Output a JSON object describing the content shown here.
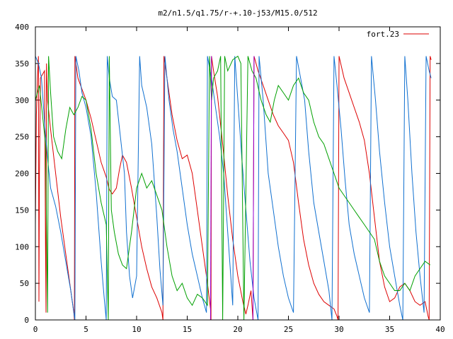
{
  "chart_data": {
    "type": "line",
    "title": "m2/n1.5/q1.75/r-+.10-j53/M15.0/512",
    "xlabel": "",
    "ylabel": "",
    "xlim": [
      0,
      40
    ],
    "ylim": [
      0,
      400
    ],
    "x_ticks": [
      "0",
      "5",
      "10",
      "15",
      "20",
      "25",
      "30",
      "35",
      "40"
    ],
    "y_ticks": [
      "0",
      "50",
      "100",
      "150",
      "200",
      "250",
      "300",
      "350",
      "400"
    ],
    "grid": false,
    "legend_position": "top-right",
    "colors": {
      "red": "#dd0000",
      "blue": "#1070d0",
      "green": "#00a000",
      "purple": "#9400d3"
    },
    "series": [
      {
        "name": "fort.23",
        "color": "#dd0000",
        "points": [
          [
            0.0,
            130
          ],
          [
            0.1,
            280
          ],
          [
            0.2,
            330
          ],
          [
            0.3,
            360
          ],
          [
            0.35,
            25
          ],
          [
            0.4,
            200
          ],
          [
            0.5,
            330
          ],
          [
            0.9,
            340
          ],
          [
            1.0,
            100
          ],
          [
            1.05,
            10
          ],
          [
            1.1,
            350
          ],
          [
            1.2,
            300
          ],
          [
            1.5,
            260
          ],
          [
            2.0,
            200
          ],
          [
            2.5,
            140
          ],
          [
            3.0,
            90
          ],
          [
            3.5,
            40
          ],
          [
            3.8,
            10
          ],
          [
            3.85,
            0
          ],
          [
            3.9,
            360
          ],
          [
            4.2,
            330
          ],
          [
            4.6,
            315
          ],
          [
            5.0,
            300
          ],
          [
            5.5,
            275
          ],
          [
            6.0,
            245
          ],
          [
            6.5,
            215
          ],
          [
            7.0,
            195
          ],
          [
            7.3,
            178
          ],
          [
            7.6,
            172
          ],
          [
            8.0,
            180
          ],
          [
            8.3,
            205
          ],
          [
            8.6,
            225
          ],
          [
            9.0,
            215
          ],
          [
            9.5,
            180
          ],
          [
            10.0,
            140
          ],
          [
            10.5,
            100
          ],
          [
            11.0,
            70
          ],
          [
            11.5,
            45
          ],
          [
            12.0,
            30
          ],
          [
            12.5,
            10
          ],
          [
            12.6,
            0
          ],
          [
            12.7,
            360
          ],
          [
            13.0,
            330
          ],
          [
            13.5,
            280
          ],
          [
            14.0,
            245
          ],
          [
            14.5,
            220
          ],
          [
            15.0,
            225
          ],
          [
            15.5,
            200
          ],
          [
            16.0,
            150
          ],
          [
            16.5,
            100
          ],
          [
            17.0,
            50
          ],
          [
            17.3,
            15
          ],
          [
            17.35,
            0
          ],
          [
            17.4,
            360
          ],
          [
            17.6,
            340
          ],
          [
            18.0,
            305
          ],
          [
            18.5,
            240
          ],
          [
            19.0,
            170
          ],
          [
            19.5,
            110
          ],
          [
            20.0,
            60
          ],
          [
            20.5,
            25
          ],
          [
            20.8,
            8
          ],
          [
            21.0,
            20
          ],
          [
            21.3,
            40
          ],
          [
            21.5,
            0
          ],
          [
            21.6,
            360
          ],
          [
            22.0,
            340
          ],
          [
            22.5,
            320
          ],
          [
            23.0,
            300
          ],
          [
            23.5,
            280
          ],
          [
            24.0,
            265
          ],
          [
            24.5,
            255
          ],
          [
            25.0,
            245
          ],
          [
            25.5,
            215
          ],
          [
            26.0,
            160
          ],
          [
            26.5,
            110
          ],
          [
            27.0,
            75
          ],
          [
            27.5,
            50
          ],
          [
            28.0,
            35
          ],
          [
            28.5,
            25
          ],
          [
            29.0,
            20
          ],
          [
            29.5,
            15
          ],
          [
            29.8,
            5
          ],
          [
            29.9,
            0
          ],
          [
            30.0,
            360
          ],
          [
            30.5,
            330
          ],
          [
            31.0,
            310
          ],
          [
            31.5,
            290
          ],
          [
            32.0,
            270
          ],
          [
            32.5,
            245
          ],
          [
            33.0,
            200
          ],
          [
            33.5,
            140
          ],
          [
            34.0,
            80
          ],
          [
            34.5,
            45
          ],
          [
            35.0,
            25
          ],
          [
            35.5,
            30
          ],
          [
            36.0,
            45
          ],
          [
            36.5,
            50
          ],
          [
            37.0,
            40
          ],
          [
            37.5,
            25
          ],
          [
            38.0,
            20
          ],
          [
            38.5,
            25
          ],
          [
            38.8,
            5
          ],
          [
            38.9,
            0
          ],
          [
            39.0,
            360
          ],
          [
            39.1,
            355
          ]
        ]
      },
      {
        "color": "#1070d0",
        "points": [
          [
            0.0,
            360
          ],
          [
            0.3,
            350
          ],
          [
            0.6,
            330
          ],
          [
            0.9,
            270
          ],
          [
            1.2,
            220
          ],
          [
            1.5,
            180
          ],
          [
            2.0,
            155
          ],
          [
            2.5,
            120
          ],
          [
            3.0,
            80
          ],
          [
            3.5,
            40
          ],
          [
            3.8,
            10
          ],
          [
            3.9,
            0
          ],
          [
            4.0,
            360
          ],
          [
            4.3,
            340
          ],
          [
            4.6,
            310
          ],
          [
            5.0,
            290
          ],
          [
            5.5,
            250
          ],
          [
            6.0,
            175
          ],
          [
            6.5,
            80
          ],
          [
            6.8,
            30
          ],
          [
            7.0,
            0
          ],
          [
            7.1,
            360
          ],
          [
            7.3,
            330
          ],
          [
            7.6,
            305
          ],
          [
            8.0,
            300
          ],
          [
            8.4,
            250
          ],
          [
            8.8,
            200
          ],
          [
            9.0,
            120
          ],
          [
            9.3,
            60
          ],
          [
            9.6,
            30
          ],
          [
            10.0,
            60
          ],
          [
            10.3,
            360
          ],
          [
            10.5,
            320
          ],
          [
            11.0,
            290
          ],
          [
            11.5,
            240
          ],
          [
            12.0,
            140
          ],
          [
            12.3,
            70
          ],
          [
            12.6,
            20
          ],
          [
            12.8,
            360
          ],
          [
            13.2,
            300
          ],
          [
            13.6,
            260
          ],
          [
            14.0,
            230
          ],
          [
            14.5,
            180
          ],
          [
            15.0,
            130
          ],
          [
            15.5,
            90
          ],
          [
            16.0,
            60
          ],
          [
            16.5,
            30
          ],
          [
            16.9,
            10
          ],
          [
            17.0,
            360
          ],
          [
            17.4,
            330
          ],
          [
            17.8,
            290
          ],
          [
            18.2,
            250
          ],
          [
            18.6,
            200
          ],
          [
            19.0,
            120
          ],
          [
            19.3,
            60
          ],
          [
            19.5,
            20
          ],
          [
            19.7,
            360
          ],
          [
            20.0,
            300
          ],
          [
            20.4,
            220
          ],
          [
            20.8,
            150
          ],
          [
            21.2,
            80
          ],
          [
            21.6,
            30
          ],
          [
            22.0,
            0
          ],
          [
            22.1,
            360
          ],
          [
            22.5,
            300
          ],
          [
            23.0,
            200
          ],
          [
            23.5,
            150
          ],
          [
            24.0,
            100
          ],
          [
            24.5,
            60
          ],
          [
            25.0,
            30
          ],
          [
            25.5,
            10
          ],
          [
            25.8,
            360
          ],
          [
            26.2,
            330
          ],
          [
            26.6,
            300
          ],
          [
            27.0,
            230
          ],
          [
            27.5,
            160
          ],
          [
            28.0,
            120
          ],
          [
            28.5,
            80
          ],
          [
            29.0,
            40
          ],
          [
            29.3,
            0
          ],
          [
            29.5,
            360
          ],
          [
            29.8,
            320
          ],
          [
            30.2,
            260
          ],
          [
            30.6,
            190
          ],
          [
            31.0,
            130
          ],
          [
            31.5,
            90
          ],
          [
            32.0,
            60
          ],
          [
            32.5,
            30
          ],
          [
            33.0,
            10
          ],
          [
            33.2,
            360
          ],
          [
            33.6,
            300
          ],
          [
            34.0,
            230
          ],
          [
            34.5,
            160
          ],
          [
            35.0,
            100
          ],
          [
            35.5,
            60
          ],
          [
            36.0,
            20
          ],
          [
            36.3,
            0
          ],
          [
            36.5,
            360
          ],
          [
            36.8,
            300
          ],
          [
            37.2,
            200
          ],
          [
            37.6,
            120
          ],
          [
            38.0,
            60
          ],
          [
            38.4,
            10
          ],
          [
            38.6,
            360
          ],
          [
            38.9,
            340
          ],
          [
            39.1,
            330
          ]
        ]
      },
      {
        "color": "#00a000",
        "points": [
          [
            0.0,
            300
          ],
          [
            0.4,
            320
          ],
          [
            0.7,
            280
          ],
          [
            1.0,
            240
          ],
          [
            1.2,
            10
          ],
          [
            1.3,
            360
          ],
          [
            1.5,
            310
          ],
          [
            1.8,
            250
          ],
          [
            2.2,
            230
          ],
          [
            2.6,
            220
          ],
          [
            3.0,
            260
          ],
          [
            3.4,
            290
          ],
          [
            3.8,
            280
          ],
          [
            4.2,
            290
          ],
          [
            4.6,
            305
          ],
          [
            5.0,
            300
          ],
          [
            5.5,
            260
          ],
          [
            6.0,
            200
          ],
          [
            6.5,
            160
          ],
          [
            7.0,
            130
          ],
          [
            7.2,
            0
          ],
          [
            7.3,
            360
          ],
          [
            7.5,
            150
          ],
          [
            7.8,
            120
          ],
          [
            8.2,
            90
          ],
          [
            8.6,
            75
          ],
          [
            9.0,
            70
          ],
          [
            9.5,
            120
          ],
          [
            10.0,
            180
          ],
          [
            10.5,
            200
          ],
          [
            11.0,
            180
          ],
          [
            11.5,
            190
          ],
          [
            12.0,
            170
          ],
          [
            12.5,
            150
          ],
          [
            13.0,
            100
          ],
          [
            13.5,
            60
          ],
          [
            14.0,
            40
          ],
          [
            14.5,
            50
          ],
          [
            15.0,
            30
          ],
          [
            15.5,
            20
          ],
          [
            16.0,
            35
          ],
          [
            16.5,
            30
          ],
          [
            17.0,
            20
          ],
          [
            17.2,
            360
          ],
          [
            17.4,
            300
          ],
          [
            17.6,
            330
          ],
          [
            18.0,
            340
          ],
          [
            18.3,
            360
          ],
          [
            18.5,
            0
          ],
          [
            18.7,
            360
          ],
          [
            19.0,
            340
          ],
          [
            19.5,
            355
          ],
          [
            20.0,
            360
          ],
          [
            20.3,
            350
          ],
          [
            20.6,
            0
          ],
          [
            21.0,
            360
          ],
          [
            21.4,
            340
          ],
          [
            21.8,
            330
          ],
          [
            22.3,
            300
          ],
          [
            22.8,
            280
          ],
          [
            23.2,
            270
          ],
          [
            23.6,
            300
          ],
          [
            24.0,
            320
          ],
          [
            24.5,
            310
          ],
          [
            25.0,
            300
          ],
          [
            25.5,
            320
          ],
          [
            26.0,
            330
          ],
          [
            26.5,
            310
          ],
          [
            27.0,
            300
          ],
          [
            27.5,
            270
          ],
          [
            28.0,
            250
          ],
          [
            28.5,
            240
          ],
          [
            29.0,
            220
          ],
          [
            29.5,
            200
          ],
          [
            30.0,
            180
          ],
          [
            30.5,
            170
          ],
          [
            31.0,
            160
          ],
          [
            31.5,
            150
          ],
          [
            32.0,
            140
          ],
          [
            32.5,
            130
          ],
          [
            33.0,
            120
          ],
          [
            33.5,
            110
          ],
          [
            34.0,
            80
          ],
          [
            34.5,
            60
          ],
          [
            35.0,
            50
          ],
          [
            35.5,
            40
          ],
          [
            36.0,
            40
          ],
          [
            36.5,
            50
          ],
          [
            37.0,
            40
          ],
          [
            37.5,
            60
          ],
          [
            38.0,
            70
          ],
          [
            38.5,
            80
          ],
          [
            39.0,
            75
          ]
        ]
      },
      {
        "color": "#9400d3",
        "points": [
          [
            17.3,
            0
          ],
          [
            17.4,
            360
          ]
        ]
      },
      {
        "color": "#9400d3",
        "points": [
          [
            21.5,
            0
          ],
          [
            21.6,
            360
          ]
        ]
      }
    ]
  }
}
